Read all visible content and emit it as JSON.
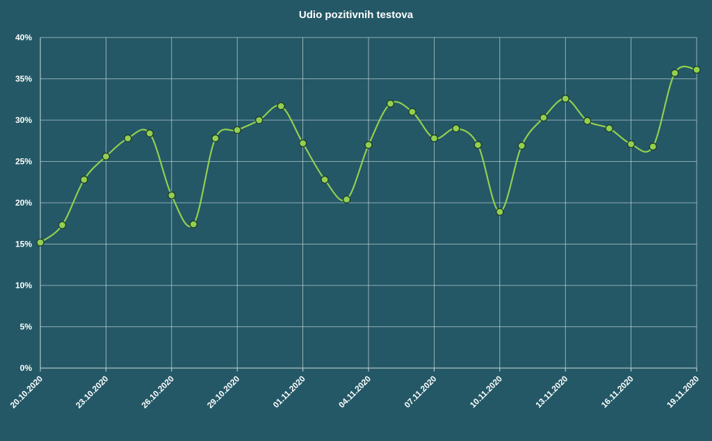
{
  "chart_data": {
    "type": "line",
    "title": "Udio pozitivnih testova",
    "xlabel": "",
    "ylabel": "",
    "x_tick_labels": [
      "20.10.2020",
      "23.10.2020",
      "26.10.2020",
      "29.10.2020",
      "01.11.2020",
      "04.11.2020",
      "07.11.2020",
      "10.11.2020",
      "13.11.2020",
      "16.11.2020",
      "19.11.2020"
    ],
    "y_tick_labels": [
      "0%",
      "5%",
      "10%",
      "15%",
      "20%",
      "25%",
      "30%",
      "35%",
      "40%"
    ],
    "ylim": [
      0,
      40
    ],
    "y_unit": "%",
    "grid": true,
    "legend": "none",
    "colors": {
      "background": "#245866",
      "line": "#92d050",
      "marker_fill": "#92d050",
      "marker_stroke": "#1f3a2a",
      "grid": "#cfdde1",
      "text": "#ffffff"
    },
    "series": [
      {
        "x": [
          "20.10.2020",
          "21.10.2020",
          "22.10.2020",
          "23.10.2020",
          "24.10.2020",
          "25.10.2020",
          "26.10.2020",
          "27.10.2020",
          "28.10.2020",
          "29.10.2020",
          "30.10.2020",
          "31.10.2020",
          "01.11.2020",
          "02.11.2020",
          "03.11.2020",
          "04.11.2020",
          "05.11.2020",
          "06.11.2020",
          "07.11.2020",
          "08.11.2020",
          "09.11.2020",
          "10.11.2020",
          "11.11.2020",
          "12.11.2020",
          "13.11.2020",
          "14.11.2020",
          "15.11.2020",
          "16.11.2020",
          "17.11.2020",
          "18.11.2020",
          "19.11.2020"
        ],
        "values": [
          15.2,
          17.3,
          22.8,
          25.6,
          27.8,
          28.4,
          20.9,
          17.4,
          27.8,
          28.8,
          30.0,
          31.7,
          27.2,
          22.8,
          20.4,
          27.0,
          32.0,
          31.0,
          27.8,
          29.0,
          27.0,
          18.9,
          26.9,
          30.3,
          32.6,
          29.9,
          29.0,
          27.1,
          26.8,
          35.7,
          36.1
        ]
      }
    ]
  }
}
